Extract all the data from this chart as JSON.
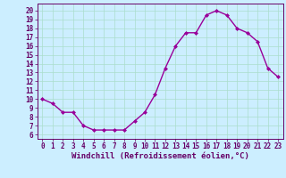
{
  "x": [
    0,
    1,
    2,
    3,
    4,
    5,
    6,
    7,
    8,
    9,
    10,
    11,
    12,
    13,
    14,
    15,
    16,
    17,
    18,
    19,
    20,
    21,
    22,
    23
  ],
  "y": [
    10.0,
    9.5,
    8.5,
    8.5,
    7.0,
    6.5,
    6.5,
    6.5,
    6.5,
    7.5,
    8.5,
    10.5,
    13.5,
    16.0,
    17.5,
    17.5,
    19.5,
    20.0,
    19.5,
    18.0,
    17.5,
    16.5,
    13.5,
    12.5
  ],
  "line_color": "#990099",
  "marker": "D",
  "marker_size": 2.0,
  "bg_color": "#cceeff",
  "grid_color": "#aaddcc",
  "xlabel": "Windchill (Refroidissement éolien,°C)",
  "ylabel_ticks": [
    6,
    7,
    8,
    9,
    10,
    11,
    12,
    13,
    14,
    15,
    16,
    17,
    18,
    19,
    20
  ],
  "ylim": [
    5.5,
    20.8
  ],
  "xlim": [
    -0.5,
    23.5
  ],
  "xlabel_fontsize": 6.5,
  "tick_fontsize": 5.5,
  "tick_color": "#660066",
  "axis_label_color": "#660066",
  "spine_color": "#660066",
  "line_width": 1.0
}
